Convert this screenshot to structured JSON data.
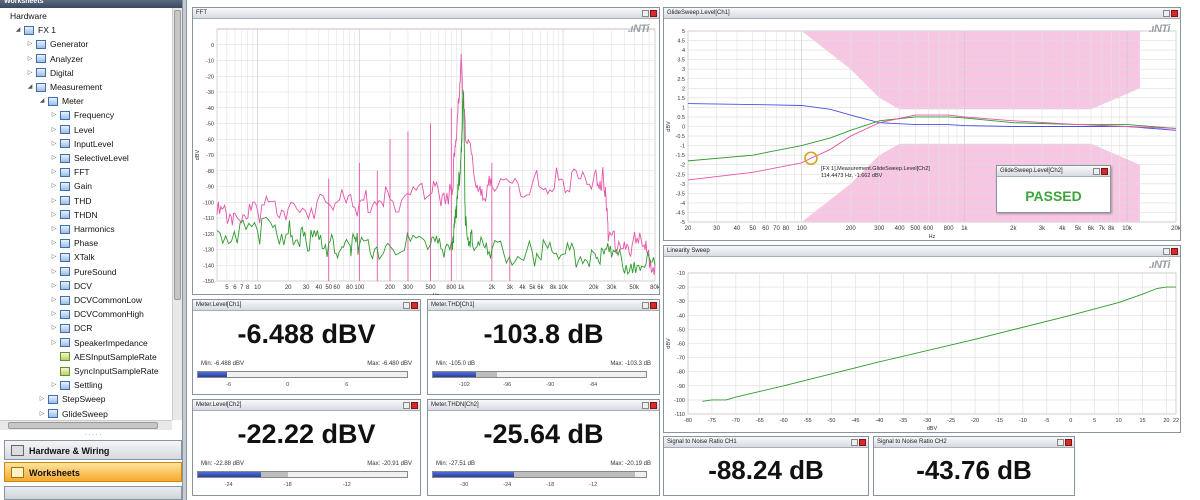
{
  "sidebar": {
    "title": "Worksheets",
    "tree": [
      {
        "label": "Hardware",
        "level": 0,
        "twisty": "",
        "icon": "none"
      },
      {
        "label": "FX 1",
        "level": 1,
        "twisty": "◢",
        "icon": "table"
      },
      {
        "label": "Generator",
        "level": 2,
        "twisty": "▷",
        "icon": "table"
      },
      {
        "label": "Analyzer",
        "level": 2,
        "twisty": "▷",
        "icon": "table"
      },
      {
        "label": "Digital",
        "level": 2,
        "twisty": "▷",
        "icon": "table"
      },
      {
        "label": "Measurement",
        "level": 2,
        "twisty": "◢",
        "icon": "table"
      },
      {
        "label": "Meter",
        "level": 3,
        "twisty": "◢",
        "icon": "table"
      },
      {
        "label": "Frequency",
        "level": 4,
        "twisty": "▷",
        "icon": "table"
      },
      {
        "label": "Level",
        "level": 4,
        "twisty": "▷",
        "icon": "table"
      },
      {
        "label": "InputLevel",
        "level": 4,
        "twisty": "▷",
        "icon": "table"
      },
      {
        "label": "SelectiveLevel",
        "level": 4,
        "twisty": "▷",
        "icon": "table"
      },
      {
        "label": "FFT",
        "level": 4,
        "twisty": "▷",
        "icon": "table"
      },
      {
        "label": "Gain",
        "level": 4,
        "twisty": "▷",
        "icon": "table"
      },
      {
        "label": "THD",
        "level": 4,
        "twisty": "▷",
        "icon": "table"
      },
      {
        "label": "THDN",
        "level": 4,
        "twisty": "▷",
        "icon": "table"
      },
      {
        "label": "Harmonics",
        "level": 4,
        "twisty": "▷",
        "icon": "table"
      },
      {
        "label": "Phase",
        "level": 4,
        "twisty": "▷",
        "icon": "table"
      },
      {
        "label": "XTalk",
        "level": 4,
        "twisty": "▷",
        "icon": "table"
      },
      {
        "label": "PureSound",
        "level": 4,
        "twisty": "▷",
        "icon": "table"
      },
      {
        "label": "DCV",
        "level": 4,
        "twisty": "▷",
        "icon": "table"
      },
      {
        "label": "DCVCommonLow",
        "level": 4,
        "twisty": "▷",
        "icon": "table"
      },
      {
        "label": "DCVCommonHigh",
        "level": 4,
        "twisty": "▷",
        "icon": "table"
      },
      {
        "label": "DCR",
        "level": 4,
        "twisty": "▷",
        "icon": "table"
      },
      {
        "label": "SpeakerImpedance",
        "level": 4,
        "twisty": "▷",
        "icon": "table"
      },
      {
        "label": "AESInputSampleRate",
        "level": 4,
        "twisty": "",
        "icon": "green"
      },
      {
        "label": "SyncInputSampleRate",
        "level": 4,
        "twisty": "",
        "icon": "green"
      },
      {
        "label": "Settling",
        "level": 4,
        "twisty": "▷",
        "icon": "table"
      },
      {
        "label": "StepSweep",
        "level": 3,
        "twisty": "▷",
        "icon": "table"
      },
      {
        "label": "GlideSweep",
        "level": 3,
        "twisty": "▷",
        "icon": "table"
      }
    ],
    "nav_hardware": "Hardware & Wiring",
    "nav_worksheets": "Worksheets",
    "grip": "· · · · ·"
  },
  "fft_panel": {
    "title": "FFT",
    "logo": ".ıNTi"
  },
  "glide_panel": {
    "title": "GlideSweep.Level[Ch1]",
    "logo": ".ıNTi"
  },
  "linearity_panel": {
    "title": "Linearity Sweep",
    "logo": ".ıNTi"
  },
  "meters": [
    {
      "title": "Meter.Level[Ch1]",
      "value": "-6.488 dBV",
      "min": "Min: -6.488 dBV",
      "max": "Max: -6.480 dBV",
      "scale": [
        "-6",
        "0",
        "6"
      ],
      "fill_frac": 0.14,
      "range": [
        0.14,
        0.14
      ]
    },
    {
      "title": "Meter.THD[Ch1]",
      "value": "-103.8 dB",
      "min": "Min: -105.0 dB",
      "max": "Max: -103.3 dB",
      "scale": [
        "-102",
        "-96",
        "-90",
        "-84"
      ],
      "fill_frac": 0.2,
      "range": [
        0.2,
        0.3
      ]
    },
    {
      "title": "Meter.Level[Ch2]",
      "value": "-22.22 dBV",
      "min": "Min: -22.88 dBV",
      "max": "Max: -20.91 dBV",
      "scale": [
        "-24",
        "-18",
        "-12"
      ],
      "fill_frac": 0.3,
      "range": [
        0.3,
        0.43
      ]
    },
    {
      "title": "Meter.THDN[Ch2]",
      "value": "-25.64 dB",
      "min": "Min: -27.51 dB",
      "max": "Max: -20.19 dB",
      "scale": [
        "-30",
        "-24",
        "-18",
        "-12"
      ],
      "fill_frac": 0.38,
      "range": [
        0.38,
        0.95
      ]
    },
    {
      "title": "Signal to Noise Ratio CH1",
      "value": "-88.24 dB"
    },
    {
      "title": "Signal to Noise Ratio CH2",
      "value": "-43.76 dB"
    }
  ],
  "pass_box": {
    "title": "GlideSweep.Level[Ch2]",
    "status": "PASSED"
  },
  "tooltip": {
    "line1": "[FX 1].Measurement.GlideSweep.Level[Ch2]",
    "line2": "114.4473 Hz, -1.662 dBV"
  },
  "colors": {
    "pink": "#e455a8",
    "green": "#2e9a2e",
    "blue": "#4a50e0",
    "darkgreen": "#1f7f1f",
    "mask": "#f7c6e2"
  },
  "chart_data": [
    {
      "type": "line",
      "xscale": "log",
      "x_ticks": [
        "5",
        "6",
        "7",
        "8",
        "10",
        "20",
        "30",
        "40",
        "50",
        "60",
        "80",
        "100",
        "200",
        "300",
        "500",
        "800",
        "1k",
        "2k",
        "3k",
        "4k",
        "5k",
        "6k",
        "8k",
        "10k",
        "20k",
        "30k",
        "50k",
        "80k"
      ],
      "x_tick_values": [
        5,
        6,
        7,
        8,
        10,
        20,
        30,
        40,
        50,
        60,
        80,
        100,
        200,
        300,
        500,
        800,
        1000,
        2000,
        3000,
        4000,
        5000,
        6000,
        8000,
        10000,
        20000,
        30000,
        50000,
        80000
      ],
      "xlabel": "Hz",
      "ylabel": "dBV",
      "xlim": [
        4,
        80000
      ],
      "ylim": [
        -150,
        10
      ],
      "y_ticks": [
        0,
        -10,
        -20,
        -30,
        -40,
        -50,
        -60,
        -70,
        -80,
        -90,
        -100,
        -110,
        -120,
        -130,
        -140,
        -150
      ],
      "series": [
        {
          "color": "pink",
          "x": [
            4,
            6,
            10,
            20,
            50,
            100,
            200,
            500,
            800,
            900,
            1000,
            1100,
            1500,
            2000,
            5000,
            10000,
            20000,
            25000,
            28000,
            40000,
            60000,
            80000
          ],
          "y": [
            -108,
            -107,
            -105,
            -104,
            -101,
            -100,
            -98,
            -95,
            -93,
            -60,
            -6,
            -60,
            -92,
            -90,
            -88,
            -86,
            -85,
            -86,
            -123,
            -125,
            -128,
            -140
          ]
        },
        {
          "color": "green",
          "x": [
            4,
            10,
            20,
            30,
            50,
            80,
            100,
            200,
            500,
            800,
            900,
            1000,
            1050,
            1100,
            1300,
            2000,
            5000,
            10000,
            20000,
            30000,
            50000,
            80000
          ],
          "y": [
            -118,
            -118,
            -120,
            -125,
            -126,
            -127,
            -127,
            -128,
            -127,
            -126,
            -110,
            -65,
            -30,
            -115,
            -128,
            -130,
            -132,
            -133,
            -132,
            -135,
            -138,
            -140
          ]
        }
      ],
      "harmonic_peaks": {
        "x": [
          50,
          100,
          150,
          200,
          300,
          500,
          800,
          2000,
          3000
        ],
        "y": [
          -85,
          -75,
          -80,
          -60,
          -55,
          -50,
          -40,
          -75,
          -90
        ]
      }
    },
    {
      "type": "line",
      "xscale": "log",
      "x_ticks": [
        "20",
        "30",
        "40",
        "50",
        "60",
        "70",
        "80",
        "100",
        "200",
        "300",
        "400",
        "500",
        "600",
        "800",
        "1k",
        "2k",
        "3k",
        "4k",
        "5k",
        "6k",
        "7k",
        "8k",
        "10k",
        "20k"
      ],
      "x_tick_values": [
        20,
        30,
        40,
        50,
        60,
        70,
        80,
        100,
        200,
        300,
        400,
        500,
        600,
        800,
        1000,
        2000,
        3000,
        4000,
        5000,
        6000,
        7000,
        8000,
        10000,
        20000
      ],
      "xlabel": "Hz",
      "ylabel": "dBV",
      "xlim": [
        20,
        20000
      ],
      "ylim": [
        -5,
        5
      ],
      "y_ticks": [
        5,
        4.5,
        4,
        3.5,
        3,
        2.5,
        2,
        1.5,
        1,
        0.5,
        0,
        -0.5,
        -1,
        -1.5,
        -2,
        -2.5,
        -3,
        -3.5,
        -4,
        -4.5,
        -5
      ],
      "series": [
        {
          "color": "blue",
          "x": [
            20,
            50,
            100,
            150,
            200,
            300,
            500,
            800,
            1000,
            2000,
            5000,
            10000,
            20000
          ],
          "y": [
            1.2,
            1.15,
            1.1,
            0.9,
            0.6,
            0.2,
            0.1,
            0.1,
            0.05,
            0,
            0,
            0,
            -0.2
          ]
        },
        {
          "color": "green",
          "x": [
            20,
            50,
            100,
            150,
            200,
            300,
            500,
            800,
            1000,
            2000,
            5000,
            10000,
            20000
          ],
          "y": [
            -1.8,
            -1.5,
            -1,
            -0.6,
            -0.2,
            0.3,
            0.5,
            0.5,
            0.45,
            0.2,
            0.1,
            0.1,
            -0.1
          ]
        },
        {
          "color": "pink",
          "x": [
            20,
            50,
            100,
            114,
            150,
            200,
            300,
            500,
            800,
            1000,
            2000,
            5000,
            10000,
            20000
          ],
          "y": [
            -2.8,
            -2.4,
            -1.9,
            -1.66,
            -1.2,
            -0.5,
            0.2,
            0.6,
            0.6,
            0.5,
            0.3,
            0.1,
            0,
            -0.1
          ]
        }
      ],
      "mask_upper": {
        "x": [
          20,
          100,
          200,
          300,
          400,
          1000,
          1000,
          6000,
          12000,
          12000,
          20000
        ],
        "y": [
          5,
          5,
          3,
          1.5,
          0.9,
          0.9,
          0.9,
          0.9,
          2,
          5,
          5
        ]
      },
      "mask_lower": {
        "x": [
          20,
          100,
          200,
          300,
          400,
          1000,
          6000,
          12000,
          12000,
          20000
        ],
        "y": [
          -5,
          -5,
          -3,
          -1.5,
          -0.9,
          -0.9,
          -0.9,
          -2,
          -5,
          -5
        ]
      },
      "marker": {
        "x": 114,
        "y": -1.662
      }
    },
    {
      "type": "line",
      "xlabel": "dBV",
      "ylabel": "dBV",
      "xlim": [
        -80,
        22
      ],
      "ylim": [
        -110,
        -10
      ],
      "x_ticks": [
        "-80",
        "-75",
        "-70",
        "-65",
        "-60",
        "-55",
        "-50",
        "-45",
        "-40",
        "-35",
        "-30",
        "-25",
        "-20",
        "-15",
        "-10",
        "-5",
        "0",
        "5",
        "10",
        "15",
        "20",
        "22"
      ],
      "x_tick_values": [
        -80,
        -75,
        -70,
        -65,
        -60,
        -55,
        -50,
        -45,
        -40,
        -35,
        -30,
        -25,
        -20,
        -15,
        -10,
        -5,
        0,
        5,
        10,
        15,
        20,
        22
      ],
      "y_ticks": [
        -10,
        -20,
        -30,
        -40,
        -50,
        -60,
        -70,
        -80,
        -90,
        -100,
        -110
      ],
      "series": [
        {
          "color": "green",
          "x": [
            -77,
            -75,
            -72,
            -70,
            -65,
            -60,
            -40,
            -20,
            0,
            10,
            15,
            18,
            20,
            22
          ],
          "y": [
            -101,
            -100,
            -100,
            -98,
            -94,
            -90,
            -73,
            -57,
            -40,
            -31,
            -25,
            -21,
            -20,
            -20
          ]
        }
      ]
    }
  ]
}
